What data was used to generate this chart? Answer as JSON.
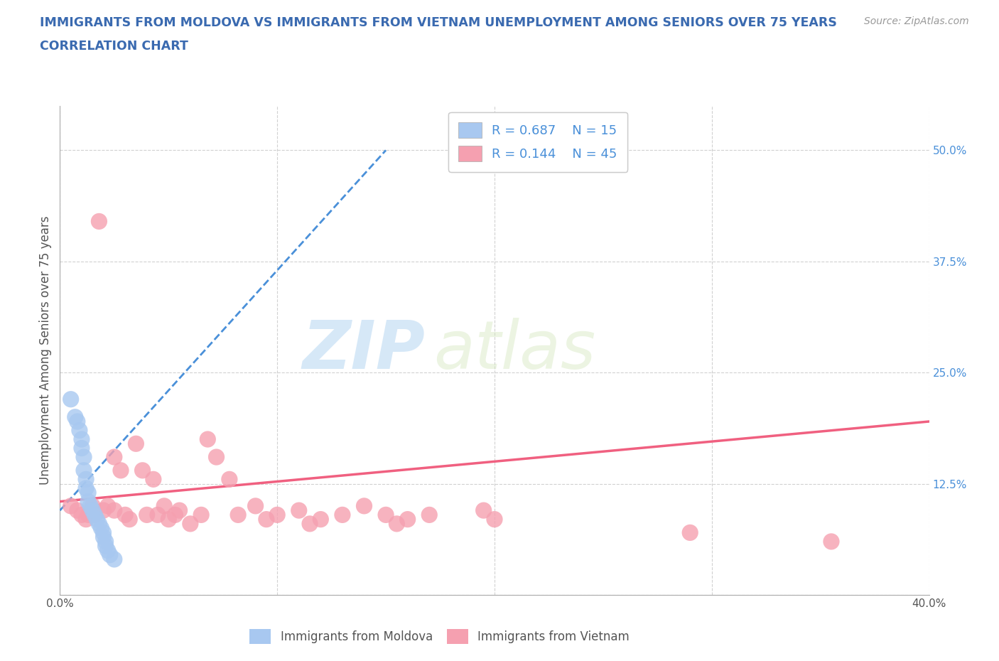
{
  "title_line1": "IMMIGRANTS FROM MOLDOVA VS IMMIGRANTS FROM VIETNAM UNEMPLOYMENT AMONG SENIORS OVER 75 YEARS",
  "title_line2": "CORRELATION CHART",
  "source": "Source: ZipAtlas.com",
  "ylabel": "Unemployment Among Seniors over 75 years",
  "xlim": [
    0.0,
    0.4
  ],
  "ylim": [
    0.0,
    0.55
  ],
  "xticks": [
    0.0,
    0.1,
    0.2,
    0.3,
    0.4
  ],
  "xticklabels": [
    "0.0%",
    "",
    "",
    "",
    "40.0%"
  ],
  "yticks": [
    0.0,
    0.125,
    0.25,
    0.375,
    0.5
  ],
  "yticklabels": [
    "",
    "12.5%",
    "25.0%",
    "37.5%",
    "50.0%"
  ],
  "color_moldova": "#a8c8f0",
  "color_vietnam": "#f5a0b0",
  "color_moldova_line": "#4a90d9",
  "color_vietnam_line": "#f06080",
  "color_title": "#3a6ab0",
  "color_legend_text": "#4a90d9",
  "background_color": "#ffffff",
  "watermark_zip": "ZIP",
  "watermark_atlas": "atlas",
  "moldova_x": [
    0.005,
    0.007,
    0.008,
    0.009,
    0.01,
    0.01,
    0.011,
    0.011,
    0.012,
    0.012,
    0.013,
    0.013,
    0.014,
    0.015,
    0.016,
    0.017,
    0.018,
    0.019,
    0.02,
    0.02,
    0.021,
    0.021,
    0.022,
    0.023,
    0.025
  ],
  "moldova_y": [
    0.22,
    0.2,
    0.195,
    0.185,
    0.175,
    0.165,
    0.155,
    0.14,
    0.13,
    0.12,
    0.115,
    0.105,
    0.1,
    0.095,
    0.09,
    0.085,
    0.08,
    0.075,
    0.07,
    0.065,
    0.06,
    0.055,
    0.05,
    0.045,
    0.04
  ],
  "vietnam_x": [
    0.005,
    0.008,
    0.01,
    0.012,
    0.013,
    0.015,
    0.016,
    0.018,
    0.02,
    0.022,
    0.025,
    0.025,
    0.028,
    0.03,
    0.032,
    0.035,
    0.038,
    0.04,
    0.043,
    0.045,
    0.048,
    0.05,
    0.053,
    0.055,
    0.06,
    0.065,
    0.068,
    0.072,
    0.078,
    0.082,
    0.09,
    0.095,
    0.1,
    0.11,
    0.115,
    0.12,
    0.13,
    0.14,
    0.15,
    0.155,
    0.16,
    0.17,
    0.195,
    0.2,
    0.29,
    0.355
  ],
  "vietnam_y": [
    0.1,
    0.095,
    0.09,
    0.085,
    0.09,
    0.1,
    0.09,
    0.42,
    0.095,
    0.1,
    0.095,
    0.155,
    0.14,
    0.09,
    0.085,
    0.17,
    0.14,
    0.09,
    0.13,
    0.09,
    0.1,
    0.085,
    0.09,
    0.095,
    0.08,
    0.09,
    0.175,
    0.155,
    0.13,
    0.09,
    0.1,
    0.085,
    0.09,
    0.095,
    0.08,
    0.085,
    0.09,
    0.1,
    0.09,
    0.08,
    0.085,
    0.09,
    0.095,
    0.085,
    0.07,
    0.06
  ],
  "moldova_trend_x": [
    0.0,
    0.15
  ],
  "moldova_trend_y": [
    0.095,
    0.5
  ],
  "vietnam_trend_x": [
    0.0,
    0.4
  ],
  "vietnam_trend_y": [
    0.105,
    0.195
  ]
}
